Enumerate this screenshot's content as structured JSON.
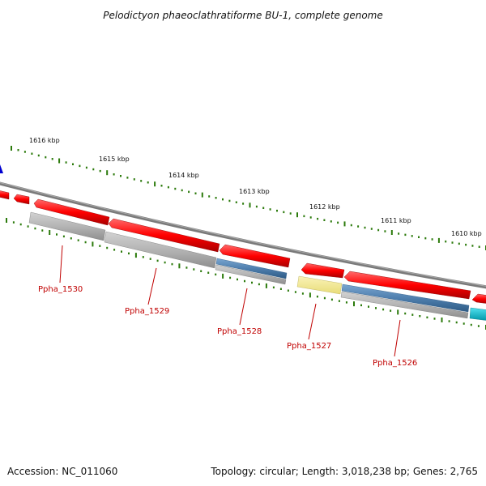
{
  "title": "Pelodictyon phaeoclathratiforme BU-1, complete genome",
  "footer": {
    "accession": "Accession: NC_011060",
    "summary": "Topology: circular; Length: 3,018,238 bp; Genes: 2,765"
  },
  "kbp_labels": [
    "1616 kbp",
    "1615 kbp",
    "1614 kbp",
    "1613 kbp",
    "1612 kbp",
    "1611 kbp",
    "1610 kbp"
  ],
  "gene_labels": [
    "Ppha_1530",
    "Ppha_1529",
    "Ppha_1528",
    "Ppha_1527",
    "Ppha_1526"
  ],
  "colors": {
    "backbone": "#7a7a7a",
    "cds": "#ff0000",
    "track_grey": "#b4b4b4",
    "track_blue": "#4f7fae",
    "track_yellow": "#f2e98f",
    "track_cyan": "#00bcd0",
    "tick": "#2b7a0b",
    "strand_marker": "#0000d0",
    "label": "#c00000"
  }
}
